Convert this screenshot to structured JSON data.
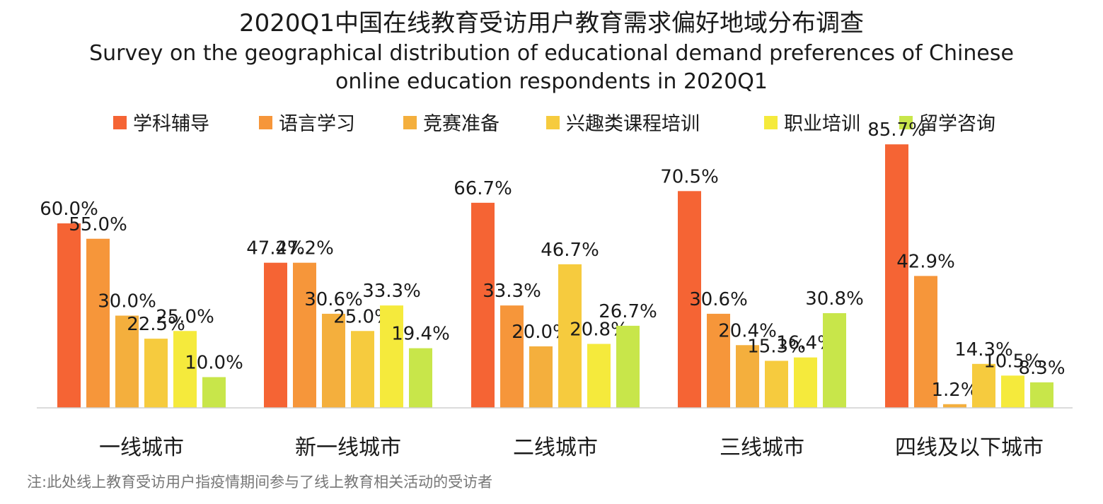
{
  "title": "2020Q1中国在线教育受访用户教育需求偏好地域分布调查",
  "subtitle": "Survey on the geographical distribution of educational demand preferences of Chinese online education respondents in 2020Q1",
  "note": "注:此处线上教育受访用户指疫情期间参与了线上教育相关活动的受访者",
  "chart_data": {
    "type": "bar",
    "categories": [
      "一线城市",
      "新一线城市",
      "二线城市",
      "三线城市",
      "四线及以下城市"
    ],
    "series": [
      {
        "name": "学科辅导",
        "color": "#F56434",
        "values": [
          60.0,
          47.2,
          66.7,
          70.5,
          85.7
        ],
        "labels": [
          "60.0%",
          "47.2%",
          "66.7%",
          "70.5%",
          "85.7%"
        ]
      },
      {
        "name": "语言学习",
        "color": "#F6963A",
        "values": [
          55.0,
          47.2,
          33.3,
          30.6,
          42.9
        ],
        "labels": [
          "55.0%",
          "47.2%",
          "33.3%",
          "30.6%",
          "42.9%"
        ]
      },
      {
        "name": "竞赛准备",
        "color": "#F4AF3D",
        "values": [
          30.0,
          30.6,
          20.0,
          20.4,
          1.2
        ],
        "labels": [
          "30.0%",
          "30.6%",
          "20.0%",
          "20.4%",
          "1.2%"
        ]
      },
      {
        "name": "兴趣类课程培训",
        "color": "#F6CB3E",
        "values": [
          22.5,
          25.0,
          46.7,
          15.3,
          14.3
        ],
        "labels": [
          "22.5%",
          "25.0%",
          "46.7%",
          "15.3%",
          "14.3%"
        ]
      },
      {
        "name": "职业培训",
        "color": "#F5EA3C",
        "values": [
          25.0,
          33.3,
          20.8,
          16.4,
          10.5
        ],
        "labels": [
          "25.0%",
          "33.3%",
          "20.8%",
          "16.4%",
          "10.5%"
        ]
      },
      {
        "name": "留学咨询",
        "color": "#C8E64A",
        "values": [
          10.0,
          19.4,
          26.7,
          30.8,
          8.3
        ],
        "labels": [
          "10.0%",
          "19.4%",
          "26.7%",
          "30.8%",
          "8.3%"
        ]
      }
    ],
    "ylim": [
      0,
      100
    ],
    "legend_position": "top",
    "grid": false,
    "xlabel": "",
    "ylabel": ""
  }
}
